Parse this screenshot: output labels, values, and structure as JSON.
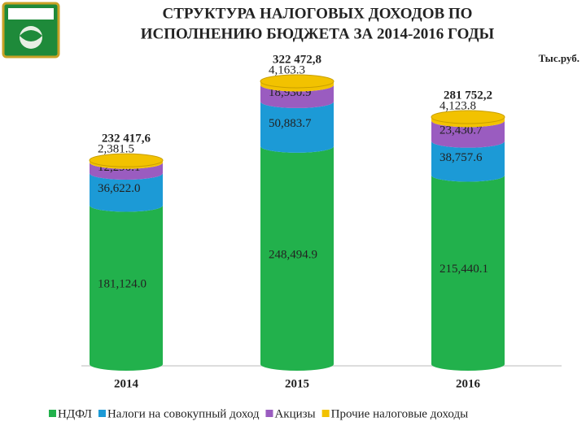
{
  "chart_data": {
    "type": "bar",
    "title": [
      "СТРУКТУРА НАЛОГОВЫХ ДОХОДОВ ПО",
      "ИСПОЛНЕНИЮ БЮДЖЕТА ЗА 2014-2016 ГОДЫ"
    ],
    "unit": "Тыс.руб.",
    "stacked": true,
    "categories": [
      "2014",
      "2015",
      "2016"
    ],
    "series": [
      {
        "name": "НДФЛ",
        "color": "#22b14c",
        "values": [
          181124.0,
          248494.9,
          215440.1
        ],
        "value_labels": [
          "181,124.0",
          "248,494.9",
          "215,440.1"
        ]
      },
      {
        "name": "Налоги на совокупный доход",
        "color": "#1c9ad6",
        "values": [
          36622.0,
          50883.7,
          38757.6
        ],
        "value_labels": [
          "36,622.0",
          "50,883.7",
          "38,757.6"
        ]
      },
      {
        "name": "Акцизы",
        "color": "#9a5cc0",
        "values": [
          12290.1,
          18930.9,
          23430.7
        ],
        "value_labels": [
          "12,290.1",
          "18,930.9",
          "23,430.7"
        ]
      },
      {
        "name": "Прочие налоговые доходы",
        "color": "#f2c200",
        "values": [
          2381.5,
          4163.3,
          4123.8
        ],
        "value_labels": [
          "2,381.5",
          "4,163.3",
          "4,123.8"
        ]
      }
    ],
    "totals": [
      232417.6,
      322472.8,
      281752.2
    ],
    "total_labels": [
      "232 417,6",
      "322 472,8",
      "281 752,2"
    ],
    "legend": "bottom"
  }
}
